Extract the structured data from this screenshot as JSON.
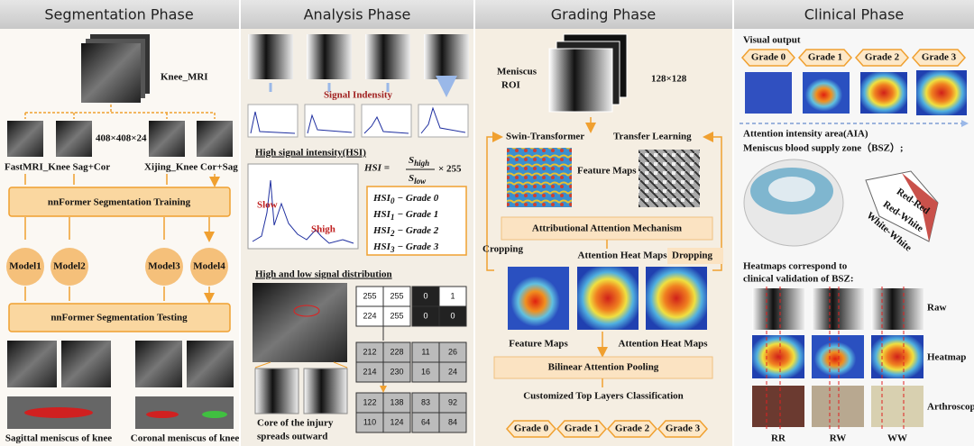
{
  "segmentation": {
    "title": "Segmentation Phase",
    "mri_label": "Knee_MRI",
    "size_label": "408×408×24",
    "dataset_left": "FastMRI_Knee Sag+Cor",
    "dataset_right": "Xijing_Knee Cor+Sag",
    "training": "nnFormer Segmentation Training",
    "models": [
      "Model1",
      "Model2",
      "Model3",
      "Model4"
    ],
    "testing": "nnFormer Segmentation Testing",
    "sagittal": "Sagittal meniscus of knee",
    "coronal": "Coronal meniscus of knee"
  },
  "analysis": {
    "title": "Analysis Phase",
    "signal": "Signal Indensity",
    "hsi_heading": "High signal intensity(HSI)",
    "formula": {
      "lhs": "HSI =",
      "num": "S",
      "num_sub": "high",
      "den": "S",
      "den_sub": "low",
      "factor": "× 255"
    },
    "plot_labels": {
      "s_low": "Slow",
      "s_high": "Shigh"
    },
    "grades": [
      {
        "name": "HSI",
        "sub": "0",
        "rest": "− Grade 0"
      },
      {
        "name": "HSI",
        "sub": "1",
        "rest": "− Grade 1"
      },
      {
        "name": "HSI",
        "sub": "2",
        "rest": "− Grade 2"
      },
      {
        "name": "HSI",
        "sub": "3",
        "rest": "− Grade 3"
      }
    ],
    "distribution_heading": "High and low signal distribution",
    "core_lines": [
      "Core of the injury",
      "spreads outward"
    ],
    "matrices": [
      [
        [
          255,
          255
        ],
        [
          224,
          255
        ]
      ],
      [
        [
          0,
          1
        ],
        [
          0,
          0
        ]
      ],
      [
        [
          212,
          228
        ],
        [
          214,
          230
        ]
      ],
      [
        [
          11,
          26
        ],
        [
          16,
          24
        ]
      ],
      [
        [
          122,
          138
        ],
        [
          110,
          124
        ]
      ],
      [
        [
          83,
          92
        ],
        [
          64,
          84
        ]
      ]
    ]
  },
  "grading": {
    "title": "Grading Phase",
    "roi": [
      "Meniscus",
      "ROI"
    ],
    "size_label": "128×128",
    "swin": "Swin-Transformer",
    "transfer": "Transfer Learning",
    "feature_maps_top": "Feature Maps",
    "attention_mechanism": "Attributional Attention Mechanism",
    "cropping": "Cropping",
    "attention_maps_top": "Attention Heat Maps",
    "dropping": "Dropping",
    "feature_maps_bottom": "Feature Maps",
    "attention_maps_bottom": "Attention Heat Maps",
    "pooling": "Bilinear Attention Pooling",
    "classification": "Customized Top Layers Classification",
    "grades": [
      "Grade 0",
      "Grade 1",
      "Grade 2",
      "Grade 3"
    ]
  },
  "clinical": {
    "title": "Clinical  Phase",
    "visual_output": "Visual output",
    "grades": [
      "Grade 0",
      "Grade 1",
      "Grade 2",
      "Grade 3"
    ],
    "aia": "Attention intensity area(AIA)",
    "bsz": "Meniscus blood supply zone（BSZ）;",
    "zones": [
      "Red-Red",
      "Red-White",
      "White-White"
    ],
    "heatmap_heading": [
      "Heatmaps correspond to",
      "clinical validation of BSZ:"
    ],
    "rows": [
      "Raw",
      "Heatmap",
      "Arthroscope"
    ],
    "columns": [
      "RR",
      "RW",
      "WW"
    ]
  }
}
